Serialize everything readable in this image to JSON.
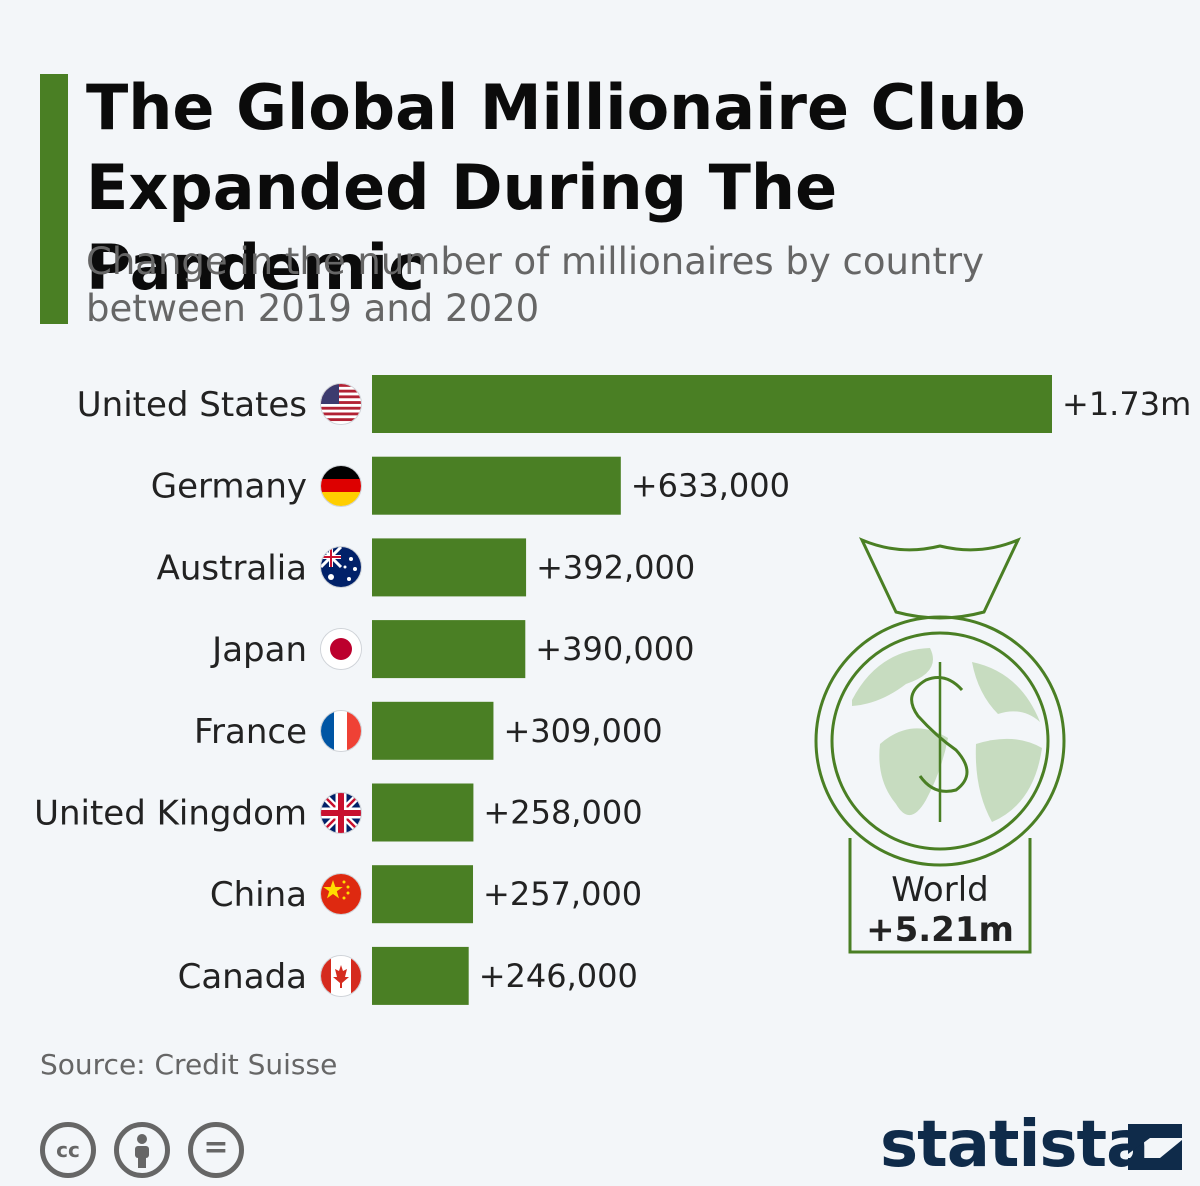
{
  "title": "The Global Millionaire Club Expanded During The Pandemic",
  "subtitle": "Change in the number of millionaires by country between 2019 and 2020",
  "source": "Source: Credit Suisse",
  "brand": "statista",
  "colors": {
    "bar": "#4a7f24",
    "accent": "#4a7f24",
    "world_icon": "#4a7f24",
    "globe_land": "#c7dcc0"
  },
  "license_icons": [
    "cc-icon",
    "attribution-icon",
    "no-derivatives-icon"
  ],
  "world": {
    "label": "World",
    "value": "+5.21m"
  },
  "chart_data": {
    "type": "bar",
    "orientation": "horizontal",
    "categories": [
      "United States",
      "Germany",
      "Australia",
      "Japan",
      "France",
      "United Kingdom",
      "China",
      "Canada"
    ],
    "values": [
      1730000,
      633000,
      392000,
      390000,
      309000,
      258000,
      257000,
      246000
    ],
    "value_labels": [
      "+1.73m",
      "+633,000",
      "+392,000",
      "+390,000",
      "+309,000",
      "+258,000",
      "+257,000",
      "+246,000"
    ],
    "flags": [
      "us-flag-icon",
      "germany-flag-icon",
      "australia-flag-icon",
      "japan-flag-icon",
      "france-flag-icon",
      "uk-flag-icon",
      "china-flag-icon",
      "canada-flag-icon"
    ],
    "xlim": [
      0,
      1730000
    ],
    "grid": false,
    "legend": "none"
  }
}
